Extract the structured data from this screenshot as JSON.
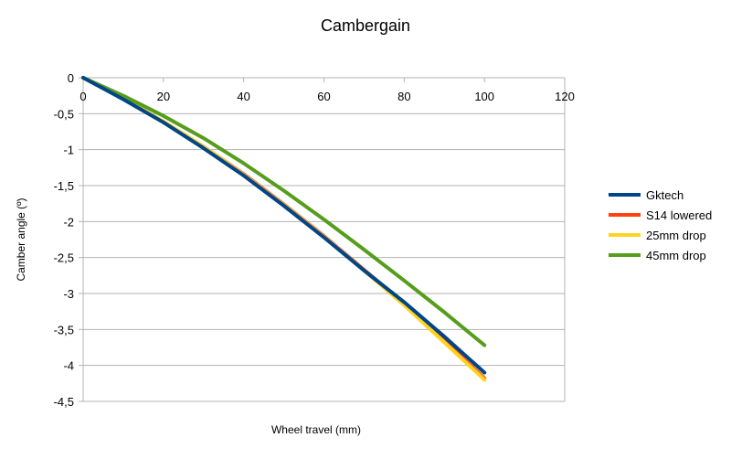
{
  "chart_data": {
    "type": "line",
    "title": "Cambergain",
    "xlabel": "Wheel travel (mm)",
    "ylabel": "Camber angle (º)",
    "xlim": [
      0,
      120
    ],
    "ylim": [
      -4.5,
      0
    ],
    "x_ticks": [
      0,
      20,
      40,
      60,
      80,
      100,
      120
    ],
    "y_ticks": [
      0,
      -0.5,
      -1,
      -1.5,
      -2,
      -2.5,
      -3,
      -3.5,
      -4,
      -4.5
    ],
    "x_tick_labels": [
      "0",
      "20",
      "40",
      "60",
      "80",
      "100",
      "120"
    ],
    "y_tick_labels": [
      "0",
      "-0,5",
      "-1",
      "-1,5",
      "-2",
      "-2,5",
      "-3",
      "-3,5",
      "-4",
      "-4,5"
    ],
    "grid": "horizontal",
    "legend_position": "right",
    "series": [
      {
        "name": "Gktech",
        "color": "#004586",
        "x": [
          0,
          10,
          20,
          30,
          40,
          50,
          60,
          70,
          80,
          90,
          100
        ],
        "y": [
          0,
          -0.3,
          -0.62,
          -0.98,
          -1.36,
          -1.78,
          -2.22,
          -2.68,
          -3.12,
          -3.6,
          -4.1
        ]
      },
      {
        "name": "S14 lowered",
        "color": "#ff420e",
        "x": [
          0,
          10,
          20,
          30,
          40,
          50,
          60,
          70,
          80,
          90,
          100
        ],
        "y": [
          0,
          -0.29,
          -0.61,
          -0.96,
          -1.34,
          -1.76,
          -2.2,
          -2.67,
          -3.14,
          -3.66,
          -4.18
        ]
      },
      {
        "name": "25mm drop",
        "color": "#ffd320",
        "x": [
          0,
          10,
          20,
          30,
          40,
          50,
          60,
          70,
          80,
          90,
          100
        ],
        "y": [
          0,
          -0.29,
          -0.61,
          -0.96,
          -1.35,
          -1.77,
          -2.21,
          -2.68,
          -3.16,
          -3.68,
          -4.2
        ]
      },
      {
        "name": "45mm drop",
        "color": "#579d1c",
        "x": [
          0,
          10,
          20,
          30,
          40,
          50,
          60,
          70,
          80,
          90,
          100
        ],
        "y": [
          0,
          -0.25,
          -0.53,
          -0.84,
          -1.19,
          -1.57,
          -1.97,
          -2.39,
          -2.82,
          -3.26,
          -3.72
        ]
      }
    ]
  }
}
